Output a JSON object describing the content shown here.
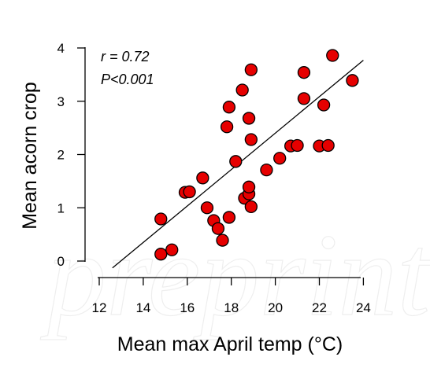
{
  "chart_data": {
    "type": "scatter",
    "title": "",
    "xlabel": "Mean max April temp (°C)",
    "ylabel": "Mean acorn crop",
    "xlim": [
      11.5,
      24.5
    ],
    "ylim": [
      -0.25,
      4.1
    ],
    "xticks": [
      12,
      14,
      16,
      18,
      20,
      22,
      24
    ],
    "yticks": [
      0,
      1,
      2,
      3,
      4
    ],
    "grid": false,
    "legend": "none",
    "marker_color": "#e60000",
    "annotations": [
      "r =  0.72",
      "P<0.001"
    ],
    "watermark": "preprint",
    "points": [
      {
        "x": 14.8,
        "y": 0.13
      },
      {
        "x": 15.3,
        "y": 0.21
      },
      {
        "x": 14.8,
        "y": 0.79
      },
      {
        "x": 15.9,
        "y": 1.29
      },
      {
        "x": 16.1,
        "y": 1.3
      },
      {
        "x": 16.7,
        "y": 1.56
      },
      {
        "x": 16.9,
        "y": 1.0
      },
      {
        "x": 17.2,
        "y": 0.76
      },
      {
        "x": 17.4,
        "y": 0.61
      },
      {
        "x": 17.6,
        "y": 0.39
      },
      {
        "x": 17.9,
        "y": 0.82
      },
      {
        "x": 18.2,
        "y": 1.87
      },
      {
        "x": 17.8,
        "y": 2.52
      },
      {
        "x": 17.9,
        "y": 2.89
      },
      {
        "x": 18.5,
        "y": 3.21
      },
      {
        "x": 18.9,
        "y": 3.59
      },
      {
        "x": 18.8,
        "y": 2.68
      },
      {
        "x": 18.9,
        "y": 2.28
      },
      {
        "x": 18.6,
        "y": 1.18
      },
      {
        "x": 18.8,
        "y": 1.26
      },
      {
        "x": 18.8,
        "y": 1.39
      },
      {
        "x": 18.9,
        "y": 1.02
      },
      {
        "x": 19.6,
        "y": 1.71
      },
      {
        "x": 20.2,
        "y": 1.93
      },
      {
        "x": 20.7,
        "y": 2.16
      },
      {
        "x": 21.0,
        "y": 2.17
      },
      {
        "x": 21.3,
        "y": 3.54
      },
      {
        "x": 21.3,
        "y": 3.05
      },
      {
        "x": 22.0,
        "y": 2.16
      },
      {
        "x": 22.4,
        "y": 2.17
      },
      {
        "x": 22.2,
        "y": 2.93
      },
      {
        "x": 22.6,
        "y": 3.86
      },
      {
        "x": 23.5,
        "y": 3.39
      }
    ],
    "fit_line": {
      "x": [
        12.6,
        24.0
      ],
      "y": [
        -0.13,
        3.77
      ]
    }
  }
}
